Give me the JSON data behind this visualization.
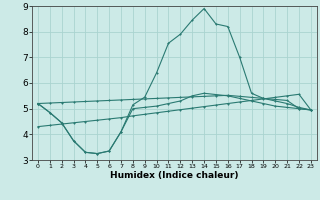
{
  "xlabel": "Humidex (Indice chaleur)",
  "ylabel": "",
  "bg_color": "#cceae7",
  "grid_color": "#aad4d0",
  "line_color": "#2a7a72",
  "xlim": [
    -0.5,
    23.5
  ],
  "ylim": [
    3,
    9
  ],
  "yticks": [
    3,
    4,
    5,
    6,
    7,
    8,
    9
  ],
  "xticks": [
    0,
    1,
    2,
    3,
    4,
    5,
    6,
    7,
    8,
    9,
    10,
    11,
    12,
    13,
    14,
    15,
    16,
    17,
    18,
    19,
    20,
    21,
    22,
    23
  ],
  "line1_x": [
    0,
    1,
    2,
    3,
    4,
    5,
    6,
    7,
    8,
    9,
    10,
    11,
    12,
    13,
    14,
    15,
    16,
    17,
    18,
    19,
    20,
    21,
    22,
    23
  ],
  "line1_y": [
    5.2,
    4.85,
    4.45,
    3.75,
    3.3,
    3.25,
    3.35,
    4.1,
    5.0,
    5.05,
    5.1,
    5.2,
    5.3,
    5.5,
    5.6,
    5.55,
    5.5,
    5.4,
    5.3,
    5.2,
    5.1,
    5.05,
    5.0,
    4.95
  ],
  "line2_x": [
    0,
    1,
    2,
    3,
    4,
    5,
    6,
    7,
    8,
    9,
    10,
    11,
    12,
    13,
    14,
    15,
    16,
    17,
    18,
    19,
    20,
    21,
    22,
    23
  ],
  "line2_y": [
    5.2,
    4.85,
    4.45,
    3.75,
    3.3,
    3.25,
    3.35,
    4.1,
    5.15,
    5.45,
    6.4,
    7.55,
    7.9,
    8.45,
    8.9,
    8.3,
    8.2,
    7.0,
    5.6,
    5.4,
    5.3,
    5.2,
    5.05,
    4.95
  ],
  "line3_x": [
    0,
    1,
    2,
    3,
    4,
    5,
    6,
    7,
    8,
    9,
    10,
    11,
    12,
    13,
    14,
    15,
    16,
    17,
    18,
    19,
    20,
    21,
    22,
    23
  ],
  "line3_y": [
    4.3,
    4.35,
    4.4,
    4.45,
    4.5,
    4.55,
    4.6,
    4.65,
    4.72,
    4.78,
    4.84,
    4.9,
    4.96,
    5.02,
    5.08,
    5.14,
    5.2,
    5.26,
    5.32,
    5.38,
    5.44,
    5.5,
    5.56,
    4.95
  ],
  "line4_x": [
    0,
    1,
    2,
    3,
    4,
    5,
    6,
    7,
    8,
    9,
    10,
    11,
    12,
    13,
    14,
    15,
    16,
    17,
    18,
    19,
    20,
    21,
    22,
    23
  ],
  "line4_y": [
    5.2,
    5.22,
    5.24,
    5.26,
    5.28,
    5.3,
    5.32,
    5.34,
    5.36,
    5.38,
    5.4,
    5.42,
    5.44,
    5.46,
    5.48,
    5.5,
    5.52,
    5.48,
    5.44,
    5.4,
    5.36,
    5.32,
    5.0,
    4.95
  ]
}
